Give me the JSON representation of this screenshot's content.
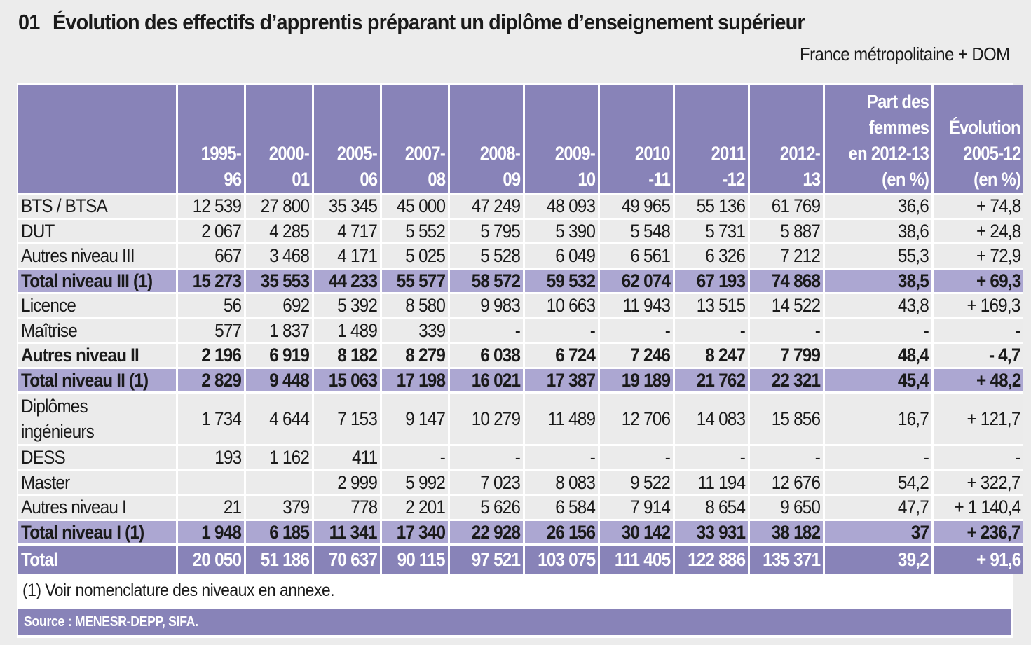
{
  "header": {
    "number": "01",
    "title": "Évolution des effectifs d’apprentis préparant un diplôme d’enseignement supérieur",
    "scope": "France métropolitaine + DOM"
  },
  "colors": {
    "header_bg": "#8883b8",
    "subtotal_bg": "#aca7d2",
    "row_bg": "#ebebeb",
    "page_bg": "#ececec"
  },
  "table": {
    "columns": [
      {
        "line1": "",
        "line2": "",
        "line3": "",
        "line4": ""
      },
      {
        "line1": "",
        "line2": "",
        "line3": "1995-",
        "line4": "96"
      },
      {
        "line1": "",
        "line2": "",
        "line3": "2000-",
        "line4": "01"
      },
      {
        "line1": "",
        "line2": "",
        "line3": "2005-",
        "line4": "06"
      },
      {
        "line1": "",
        "line2": "",
        "line3": "2007-",
        "line4": "08"
      },
      {
        "line1": "",
        "line2": "",
        "line3": "2008-",
        "line4": "09"
      },
      {
        "line1": "",
        "line2": "",
        "line3": "2009-",
        "line4": "10"
      },
      {
        "line1": "",
        "line2": "",
        "line3": "2010",
        "line4": "-11"
      },
      {
        "line1": "",
        "line2": "",
        "line3": "2011",
        "line4": "-12"
      },
      {
        "line1": "",
        "line2": "",
        "line3": "2012-",
        "line4": "13"
      },
      {
        "line1": "Part des",
        "line2": "femmes",
        "line3": "en 2012-13",
        "line4": "(en %)"
      },
      {
        "line1": "",
        "line2": "Évolution",
        "line3": "2005-12",
        "line4": "(en %)"
      }
    ],
    "rows": [
      {
        "label": "BTS / BTSA",
        "values": [
          "12 539",
          "27 800",
          "35 345",
          "45 000",
          "47 249",
          "48 093",
          "49 965",
          "55 136",
          "61 769",
          "36,6",
          "+ 74,8"
        ]
      },
      {
        "label": "DUT",
        "values": [
          "2 067",
          "4 285",
          "4 717",
          "5 552",
          "5 795",
          "5 390",
          "5 548",
          "5 731",
          "5 887",
          "38,6",
          "+ 24,8"
        ]
      },
      {
        "label": "Autres niveau III",
        "values": [
          "667",
          "3 468",
          "4 171",
          "5 025",
          "5 528",
          "6 049",
          "6 561",
          "6 326",
          "7 212",
          "55,3",
          "+ 72,9"
        ]
      },
      {
        "label": "Total niveau III (1)",
        "values": [
          "15 273",
          "35 553",
          "44 233",
          "55 577",
          "58 572",
          "59 532",
          "62 074",
          "67 193",
          "74 868",
          "38,5",
          "+ 69,3"
        ]
      },
      {
        "label": "Licence",
        "values": [
          "56",
          "692",
          "5 392",
          "8 580",
          "9 983",
          "10 663",
          "11 943",
          "13 515",
          "14 522",
          "43,8",
          "+ 169,3"
        ]
      },
      {
        "label": "Maîtrise",
        "values": [
          "577",
          "1 837",
          "1 489",
          "339",
          "-",
          "-",
          "-",
          "-",
          "-",
          "-",
          "-"
        ]
      },
      {
        "label": "Autres niveau II",
        "values": [
          "2 196",
          "6 919",
          "8 182",
          "8 279",
          "6 038",
          "6 724",
          "7 246",
          "8 247",
          "7 799",
          "48,4",
          "- 4,7"
        ]
      },
      {
        "label": "Total niveau II (1)",
        "values": [
          "2 829",
          "9 448",
          "15 063",
          "17 198",
          "16 021",
          "17 387",
          "19 189",
          "21 762",
          "22 321",
          "45,4",
          "+ 48,2"
        ]
      },
      {
        "label": "Diplômes ingénieurs",
        "values": [
          "1 734",
          "4 644",
          "7 153",
          "9 147",
          "10 279",
          "11 489",
          "12 706",
          "14 083",
          "15 856",
          "16,7",
          "+ 121,7"
        ]
      },
      {
        "label": "DESS",
        "values": [
          "193",
          "1 162",
          "411",
          "-",
          "-",
          "-",
          "-",
          "-",
          "-",
          "-",
          "-"
        ]
      },
      {
        "label": "Master",
        "values": [
          "",
          "",
          "2 999",
          "5 992",
          "7 023",
          "8 083",
          "9 522",
          "11 194",
          "12 676",
          "54,2",
          "+ 322,7"
        ]
      },
      {
        "label": "Autres niveau I",
        "values": [
          "21",
          "379",
          "778",
          "2 201",
          "5 626",
          "6 584",
          "7 914",
          "8 654",
          "9 650",
          "47,7",
          "+ 1 140,4"
        ]
      },
      {
        "label": "Total niveau I (1)",
        "values": [
          "1 948",
          "6 185",
          "11 341",
          "17 340",
          "22 928",
          "26 156",
          "30 142",
          "33 931",
          "38 182",
          "37",
          "+ 236,7"
        ]
      },
      {
        "label": "Total",
        "values": [
          "20 050",
          "51 186",
          "70 637",
          "90 115",
          "97 521",
          "103 075",
          "111 405",
          "122 886",
          "135 371",
          "39,2",
          "+ 91,6"
        ]
      }
    ]
  },
  "footnote": "(1) Voir nomenclature des niveaux en annexe.",
  "source": "Source : MENESR-DEPP, SIFA."
}
